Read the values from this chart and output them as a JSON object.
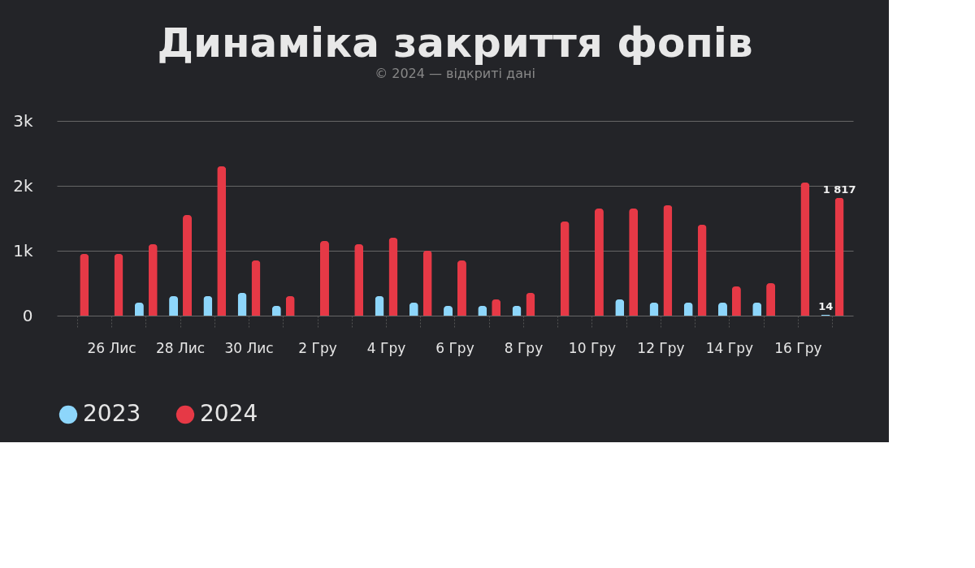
{
  "chart_data": {
    "type": "bar",
    "title": "Динаміка закриття фопів",
    "categories": [
      null,
      "26 Лис",
      null,
      "28 Лис",
      null,
      "30 Лис",
      null,
      "2 Гру",
      null,
      "4 Гру",
      null,
      "6 Гру",
      null,
      "8 Гру",
      null,
      "10 Гру",
      null,
      "12 Гру",
      null,
      "14 Гру",
      null,
      "16 Гру",
      null
    ],
    "series": [
      {
        "name": "2023",
        "color": "#8dd6fb",
        "values": [
          0,
          0,
          200,
          300,
          300,
          350,
          150,
          0,
          0,
          300,
          200,
          150,
          150,
          150,
          0,
          0,
          250,
          200,
          200,
          200,
          200,
          0,
          14
        ],
        "value_labels": [
          null,
          null,
          null,
          null,
          null,
          null,
          null,
          null,
          null,
          null,
          null,
          null,
          null,
          null,
          null,
          null,
          null,
          null,
          null,
          null,
          null,
          null,
          "14"
        ]
      },
      {
        "name": "2024",
        "color": "#e63946",
        "values": [
          950,
          950,
          1100,
          1550,
          2300,
          850,
          300,
          1150,
          1100,
          1200,
          1000,
          850,
          250,
          350,
          1450,
          1650,
          1650,
          1700,
          1400,
          450,
          500,
          2050,
          1817
        ],
        "value_labels": [
          null,
          null,
          null,
          null,
          null,
          null,
          null,
          null,
          null,
          null,
          null,
          null,
          null,
          null,
          null,
          null,
          null,
          null,
          null,
          null,
          null,
          null,
          "1 817"
        ]
      }
    ],
    "ylim": [
      0,
      3000
    ],
    "yticks": [
      0,
      {
        "value": 1000,
        "label": "1k"
      },
      {
        "value": 2000,
        "label": "2k"
      },
      {
        "value": 3000,
        "label": "3k"
      }
    ],
    "grid": "y",
    "legend": "bottom",
    "annotations": [
      "© 2024 — відкриті дані"
    ]
  }
}
